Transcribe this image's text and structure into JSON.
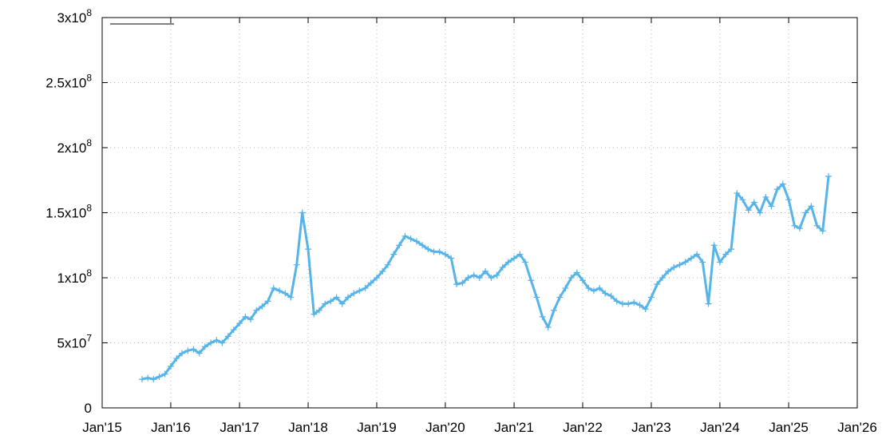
{
  "chart_data": {
    "type": "scatter",
    "title": "",
    "xlabel": "",
    "ylabel": "",
    "xlim": [
      "2015-01-01",
      "2026-01-01"
    ],
    "ylim": [
      0,
      300000000
    ],
    "grid": true,
    "legend": "top-left",
    "x_ticks": [
      {
        "date": "2015-01-01",
        "label": "Jan'15"
      },
      {
        "date": "2016-01-01",
        "label": "Jan'16"
      },
      {
        "date": "2017-01-01",
        "label": "Jan'17"
      },
      {
        "date": "2018-01-01",
        "label": "Jan'18"
      },
      {
        "date": "2019-01-01",
        "label": "Jan'19"
      },
      {
        "date": "2020-01-01",
        "label": "Jan'20"
      },
      {
        "date": "2021-01-01",
        "label": "Jan'21"
      },
      {
        "date": "2022-01-01",
        "label": "Jan'22"
      },
      {
        "date": "2023-01-01",
        "label": "Jan'23"
      },
      {
        "date": "2024-01-01",
        "label": "Jan'24"
      },
      {
        "date": "2025-01-01",
        "label": "Jan'25"
      },
      {
        "date": "2026-01-01",
        "label": "Jan'26"
      }
    ],
    "y_ticks": [
      {
        "value": 0,
        "label": "0"
      },
      {
        "value": 50000000,
        "label": "5x10^7"
      },
      {
        "value": 100000000,
        "label": "1x10^8"
      },
      {
        "value": 150000000,
        "label": "1.5x10^8"
      },
      {
        "value": 200000000,
        "label": "2x10^8"
      },
      {
        "value": 250000000,
        "label": "2.5x10^8"
      },
      {
        "value": 300000000,
        "label": "3x10^8"
      }
    ],
    "series": [
      {
        "marker": "+",
        "color": "#56b4e9",
        "x": [
          "2015-08-01",
          "2015-09-01",
          "2015-10-01",
          "2015-11-01",
          "2015-12-01",
          "2016-01-01",
          "2016-02-01",
          "2016-03-01",
          "2016-04-01",
          "2016-05-01",
          "2016-06-01",
          "2016-07-01",
          "2016-08-01",
          "2016-09-01",
          "2016-10-01",
          "2016-11-01",
          "2016-12-01",
          "2017-01-01",
          "2017-02-01",
          "2017-03-01",
          "2017-04-01",
          "2017-05-01",
          "2017-06-01",
          "2017-07-01",
          "2017-08-01",
          "2017-09-01",
          "2017-10-01",
          "2017-11-01",
          "2017-12-01",
          "2018-01-01",
          "2018-02-01",
          "2018-03-01",
          "2018-04-01",
          "2018-05-01",
          "2018-06-01",
          "2018-07-01",
          "2018-08-01",
          "2018-09-01",
          "2018-10-01",
          "2018-11-01",
          "2018-12-01",
          "2019-01-01",
          "2019-02-01",
          "2019-03-01",
          "2019-04-01",
          "2019-05-01",
          "2019-06-01",
          "2019-07-01",
          "2019-08-01",
          "2019-09-01",
          "2019-10-01",
          "2019-11-01",
          "2019-12-01",
          "2020-01-01",
          "2020-02-01",
          "2020-03-01",
          "2020-04-01",
          "2020-05-01",
          "2020-06-01",
          "2020-07-01",
          "2020-08-01",
          "2020-09-01",
          "2020-10-01",
          "2020-11-01",
          "2020-12-01",
          "2021-01-01",
          "2021-02-01",
          "2021-03-01",
          "2021-04-01",
          "2021-05-01",
          "2021-06-01",
          "2021-07-01",
          "2021-08-01",
          "2021-09-01",
          "2021-10-01",
          "2021-11-01",
          "2021-12-01",
          "2022-01-01",
          "2022-02-01",
          "2022-03-01",
          "2022-04-01",
          "2022-05-01",
          "2022-06-01",
          "2022-07-01",
          "2022-08-01",
          "2022-09-01",
          "2022-10-01",
          "2022-11-01",
          "2022-12-01",
          "2023-01-01",
          "2023-02-01",
          "2023-03-01",
          "2023-04-01",
          "2023-05-01",
          "2023-06-01",
          "2023-07-01",
          "2023-08-01",
          "2023-09-01",
          "2023-10-01",
          "2023-11-01",
          "2023-12-01",
          "2024-01-01",
          "2024-02-01",
          "2024-03-01",
          "2024-04-01",
          "2024-05-01",
          "2024-06-01",
          "2024-07-01",
          "2024-08-01",
          "2024-09-01",
          "2024-10-01",
          "2024-11-01",
          "2024-12-01",
          "2025-01-01",
          "2025-02-01",
          "2025-03-01",
          "2025-04-01",
          "2025-05-01",
          "2025-06-01",
          "2025-07-01",
          "2025-08-01"
        ],
        "y": [
          22000000,
          23000000,
          22000000,
          24000000,
          26000000,
          32000000,
          38000000,
          42000000,
          44000000,
          45000000,
          42000000,
          47000000,
          50000000,
          52000000,
          50000000,
          55000000,
          60000000,
          65000000,
          70000000,
          68000000,
          75000000,
          78000000,
          82000000,
          92000000,
          90000000,
          88000000,
          85000000,
          110000000,
          150000000,
          122000000,
          72000000,
          75000000,
          80000000,
          82000000,
          85000000,
          80000000,
          85000000,
          88000000,
          90000000,
          92000000,
          96000000,
          100000000,
          105000000,
          110000000,
          118000000,
          125000000,
          132000000,
          130000000,
          128000000,
          125000000,
          122000000,
          120000000,
          120000000,
          118000000,
          115000000,
          95000000,
          96000000,
          100000000,
          102000000,
          100000000,
          105000000,
          100000000,
          102000000,
          108000000,
          112000000,
          115000000,
          118000000,
          112000000,
          98000000,
          85000000,
          70000000,
          62000000,
          75000000,
          85000000,
          92000000,
          100000000,
          104000000,
          98000000,
          92000000,
          90000000,
          92000000,
          88000000,
          86000000,
          82000000,
          80000000,
          80000000,
          81000000,
          79000000,
          76000000,
          85000000,
          95000000,
          100000000,
          105000000,
          108000000,
          110000000,
          112000000,
          115000000,
          118000000,
          112000000,
          80000000,
          125000000,
          112000000,
          118000000,
          122000000,
          165000000,
          160000000,
          152000000,
          158000000,
          150000000,
          162000000,
          155000000,
          168000000,
          172000000,
          160000000,
          140000000,
          138000000,
          150000000,
          155000000,
          140000000,
          136000000,
          178000000
        ]
      }
    ]
  }
}
